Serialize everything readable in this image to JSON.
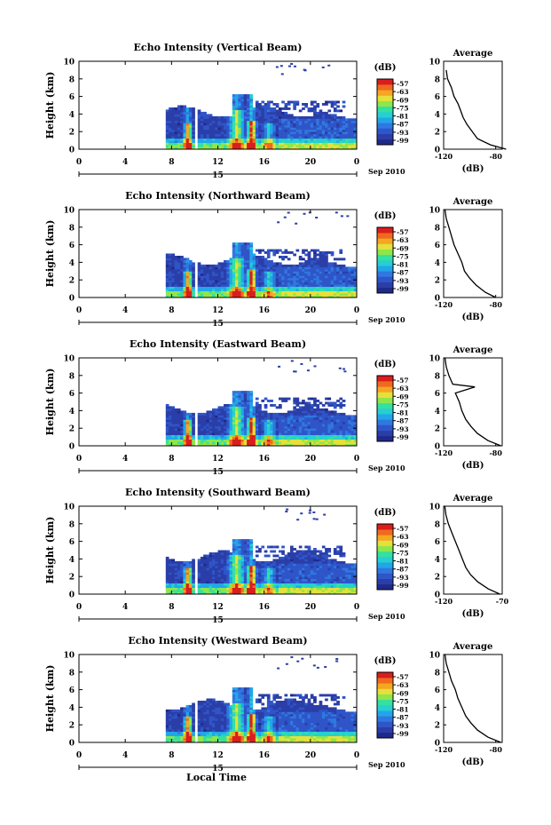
{
  "figure": {
    "x_axis_label": "Local Time",
    "colorbar_unit": "(dB)",
    "colorbar_ticks": [
      "-57",
      "-63",
      "-69",
      "-75",
      "-81",
      "-87",
      "-93",
      "-99"
    ],
    "x_ticks": [
      "0",
      "4",
      "8",
      "12",
      "16",
      "20",
      "0"
    ],
    "date_marker": "15",
    "date_label": "Sep 2010",
    "colors": [
      "#1e2a8a",
      "#2b3ea8",
      "#2f55c8",
      "#2f78e0",
      "#22a6e8",
      "#25cfd2",
      "#35e0a0",
      "#8ee64c",
      "#e6e03a",
      "#f5a623",
      "#f06a1e",
      "#d91e1e"
    ]
  },
  "chart_data": [
    {
      "type": "heatmap",
      "title": "Echo Intensity (Vertical Beam)",
      "ylabel": "Height (km)",
      "xlim": [
        0,
        24
      ],
      "ylim": [
        0,
        10
      ],
      "yticks": [
        "0",
        "2",
        "4",
        "6",
        "8",
        "10"
      ],
      "colorbar": {
        "label": "(dB)",
        "range": [
          -99,
          -57
        ]
      },
      "average": {
        "title": "Average",
        "xlabel": "(dB)",
        "xticks": [
          "-120",
          "-80"
        ],
        "xlim": [
          -120,
          -75
        ],
        "profile": [
          [
            -72,
            0
          ],
          [
            -84,
            0.5
          ],
          [
            -94,
            1.2
          ],
          [
            -98,
            2.0
          ],
          [
            -102,
            2.8
          ],
          [
            -105,
            3.6
          ],
          [
            -107,
            4.4
          ],
          [
            -109,
            5.2
          ],
          [
            -112,
            6.0
          ],
          [
            -114,
            7.0
          ],
          [
            -117,
            8.0
          ],
          [
            -118,
            9.0
          ]
        ]
      }
    },
    {
      "type": "heatmap",
      "title": "Echo Intensity (Northward Beam)",
      "ylabel": "Height (km)",
      "xlim": [
        0,
        24
      ],
      "ylim": [
        0,
        10
      ],
      "yticks": [
        "0",
        "2",
        "4",
        "6",
        "8",
        "10"
      ],
      "colorbar": {
        "label": "(dB)",
        "range": [
          -99,
          -57
        ]
      },
      "average": {
        "title": "Average",
        "xlabel": "(dB)",
        "xticks": [
          "-120",
          "-80"
        ],
        "xlim": [
          -120,
          -75
        ],
        "profile": [
          [
            -80,
            0
          ],
          [
            -88,
            0.6
          ],
          [
            -95,
            1.4
          ],
          [
            -100,
            2.2
          ],
          [
            -104,
            3.0
          ],
          [
            -106,
            4.0
          ],
          [
            -109,
            5.0
          ],
          [
            -112,
            6.0
          ],
          [
            -114,
            7.0
          ],
          [
            -116,
            8.0
          ],
          [
            -118,
            9.0
          ],
          [
            -119,
            10
          ]
        ]
      }
    },
    {
      "type": "heatmap",
      "title": "Echo Intensity (Eastward Beam)",
      "ylabel": "Height (km)",
      "xlim": [
        0,
        24
      ],
      "ylim": [
        0,
        10
      ],
      "yticks": [
        "0",
        "2",
        "4",
        "6",
        "8",
        "10"
      ],
      "colorbar": {
        "label": "(dB)",
        "range": [
          -99,
          -57
        ]
      },
      "average": {
        "title": "Average",
        "xlabel": "(dB)",
        "xticks": [
          "-120",
          "-80"
        ],
        "xlim": [
          -120,
          -75
        ],
        "profile": [
          [
            -76,
            0
          ],
          [
            -86,
            0.6
          ],
          [
            -94,
            1.4
          ],
          [
            -99,
            2.2
          ],
          [
            -103,
            3.0
          ],
          [
            -106,
            4.0
          ],
          [
            -108,
            5.0
          ],
          [
            -111,
            6.0
          ],
          [
            -96,
            6.7
          ],
          [
            -113,
            7.0
          ],
          [
            -116,
            8.0
          ],
          [
            -118,
            9.0
          ],
          [
            -119,
            10
          ]
        ]
      }
    },
    {
      "type": "heatmap",
      "title": "Echo Intensity (Southward Beam)",
      "ylabel": "Height (km)",
      "xlim": [
        0,
        24
      ],
      "ylim": [
        0,
        10
      ],
      "yticks": [
        "0",
        "2",
        "4",
        "6",
        "8",
        "10"
      ],
      "colorbar": {
        "label": "(dB)",
        "range": [
          -99,
          -57
        ]
      },
      "average": {
        "title": "Average",
        "xlabel": "(dB)",
        "xticks": [
          "-120",
          "-70"
        ],
        "xlim": [
          -120,
          -70
        ],
        "profile": [
          [
            -72,
            0
          ],
          [
            -82,
            0.6
          ],
          [
            -91,
            1.4
          ],
          [
            -97,
            2.2
          ],
          [
            -101,
            3.0
          ],
          [
            -104,
            4.0
          ],
          [
            -107,
            5.0
          ],
          [
            -110,
            6.0
          ],
          [
            -113,
            7.0
          ],
          [
            -116,
            8.0
          ],
          [
            -118,
            9.0
          ],
          [
            -119,
            10
          ]
        ]
      }
    },
    {
      "type": "heatmap",
      "title": "Echo Intensity (Westward Beam)",
      "ylabel": "Height (km)",
      "xlim": [
        0,
        24
      ],
      "ylim": [
        0,
        10
      ],
      "yticks": [
        "0",
        "2",
        "4",
        "6",
        "8",
        "10"
      ],
      "colorbar": {
        "label": "(dB)",
        "range": [
          -99,
          -57
        ]
      },
      "average": {
        "title": "Average",
        "xlabel": "(dB)",
        "xticks": [
          "-120",
          "-80"
        ],
        "xlim": [
          -120,
          -75
        ],
        "profile": [
          [
            -76,
            0
          ],
          [
            -86,
            0.6
          ],
          [
            -94,
            1.4
          ],
          [
            -99,
            2.2
          ],
          [
            -103,
            3.0
          ],
          [
            -106,
            4.0
          ],
          [
            -109,
            5.0
          ],
          [
            -111,
            6.0
          ],
          [
            -114,
            7.0
          ],
          [
            -116,
            8.0
          ],
          [
            -118,
            9.0
          ],
          [
            -119,
            10
          ]
        ]
      }
    }
  ]
}
